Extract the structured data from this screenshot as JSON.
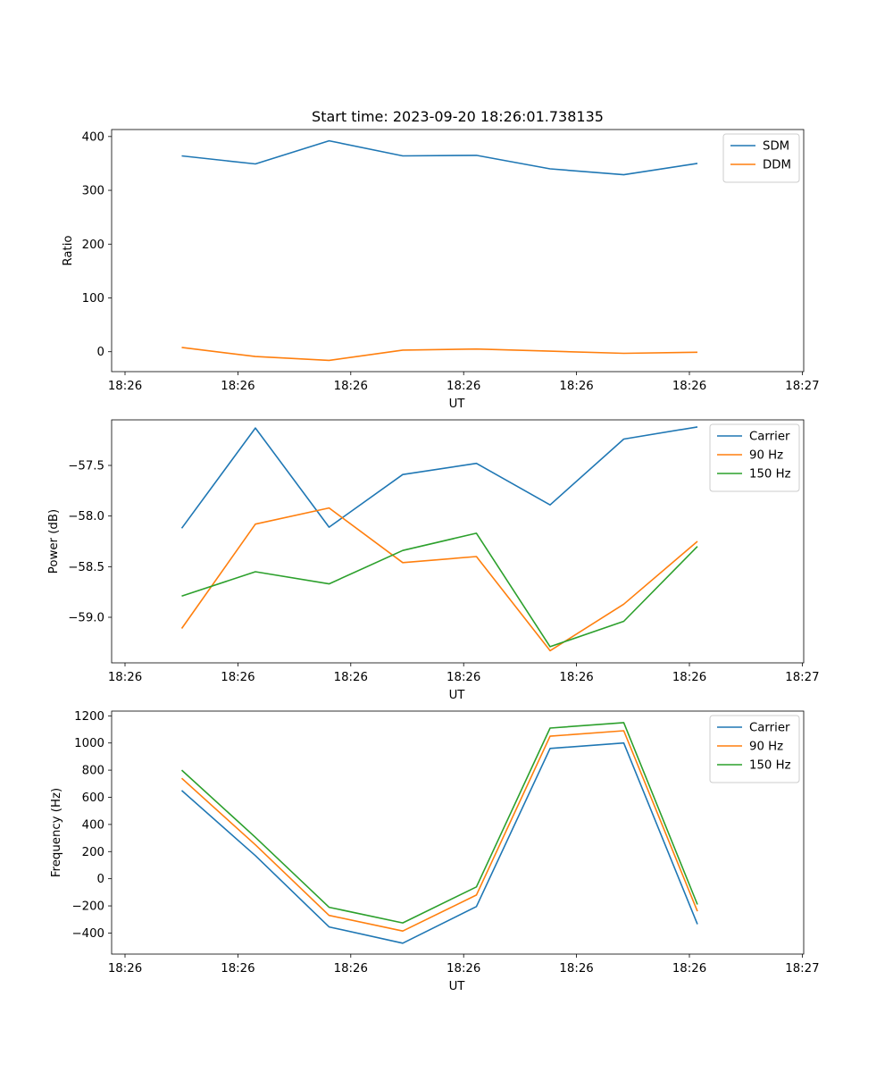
{
  "chart_data": [
    {
      "type": "line",
      "title": "Start time: 2023-09-20 18:26:01.738135",
      "xlabel": "UT",
      "ylabel": "Ratio",
      "x": [
        1,
        2,
        3,
        4,
        5,
        6,
        7,
        8
      ],
      "xlim": [
        0.8,
        9.3
      ],
      "xticks": [
        1,
        2.5,
        4,
        5.5,
        7,
        8.5
      ],
      "xtick_labels_axis": [
        0.8,
        2.33,
        3.85,
        5.38,
        6.9,
        8.43,
        9.1
      ],
      "xtick_labels": [
        "18:26",
        "18:26",
        "18:26",
        "18:26",
        "18:26",
        "18:26",
        "18:27"
      ],
      "ylim": [
        -37,
        413
      ],
      "yticks": [
        0,
        100,
        200,
        300,
        400
      ],
      "ytick_labels": [
        "0",
        "100",
        "200",
        "300",
        "400"
      ],
      "legend_position": "top-right",
      "series": [
        {
          "name": "SDM",
          "color": "#1f77b4",
          "values": [
            364,
            349,
            392,
            364,
            365,
            340,
            329,
            350
          ]
        },
        {
          "name": "DDM",
          "color": "#ff7f0e",
          "values": [
            8,
            -9,
            -16,
            3,
            5,
            1,
            -3,
            -1
          ]
        }
      ]
    },
    {
      "type": "line",
      "title": "",
      "xlabel": "UT",
      "ylabel": "Power (dB)",
      "x": [
        1,
        2,
        3,
        4,
        5,
        6,
        7,
        8
      ],
      "xlim": [
        0.8,
        9.3
      ],
      "xtick_labels_axis": [
        0.8,
        2.33,
        3.85,
        5.38,
        6.9,
        8.43,
        9.1
      ],
      "xtick_labels": [
        "18:26",
        "18:26",
        "18:26",
        "18:26",
        "18:26",
        "18:26",
        "18:27"
      ],
      "ylim": [
        -59.45,
        -57.05
      ],
      "yticks": [
        -59.0,
        -58.5,
        -58.0,
        -57.5
      ],
      "ytick_labels": [
        "−59.0",
        "−58.5",
        "−58.0",
        "−57.5"
      ],
      "legend_position": "top-right",
      "series": [
        {
          "name": "Carrier",
          "color": "#1f77b4",
          "values": [
            -58.12,
            -57.13,
            -58.11,
            -57.59,
            -57.48,
            -57.89,
            -57.24,
            -57.12
          ]
        },
        {
          "name": "90 Hz",
          "color": "#ff7f0e",
          "values": [
            -59.11,
            -58.08,
            -57.92,
            -58.46,
            -58.4,
            -59.33,
            -58.87,
            -58.25
          ]
        },
        {
          "name": "150 Hz",
          "color": "#2ca02c",
          "values": [
            -58.79,
            -58.55,
            -58.67,
            -58.34,
            -58.17,
            -59.29,
            -59.04,
            -58.3
          ]
        }
      ]
    },
    {
      "type": "line",
      "title": "",
      "xlabel": "UT",
      "ylabel": "Frequency (Hz)",
      "x": [
        1,
        2,
        3,
        4,
        5,
        6,
        7,
        8
      ],
      "xlim": [
        0.8,
        9.3
      ],
      "xtick_labels_axis": [
        0.8,
        2.33,
        3.85,
        5.38,
        6.9,
        8.43,
        9.1
      ],
      "xtick_labels": [
        "18:26",
        "18:26",
        "18:26",
        "18:26",
        "18:26",
        "18:26",
        "18:27"
      ],
      "ylim": [
        -555,
        1235
      ],
      "yticks": [
        -400,
        -200,
        0,
        200,
        400,
        600,
        800,
        1000,
        1200
      ],
      "ytick_labels": [
        "−400",
        "−200",
        "0",
        "200",
        "400",
        "600",
        "800",
        "1000",
        "1200"
      ],
      "legend_position": "top-right",
      "series": [
        {
          "name": "Carrier",
          "color": "#1f77b4",
          "values": [
            650,
            170,
            -355,
            -475,
            -205,
            960,
            1000,
            -335
          ]
        },
        {
          "name": "90 Hz",
          "color": "#ff7f0e",
          "values": [
            740,
            250,
            -270,
            -385,
            -120,
            1050,
            1090,
            -240
          ]
        },
        {
          "name": "150 Hz",
          "color": "#2ca02c",
          "values": [
            800,
            305,
            -210,
            -325,
            -60,
            1110,
            1150,
            -190
          ]
        }
      ]
    }
  ]
}
